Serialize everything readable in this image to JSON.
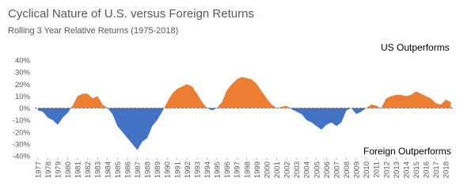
{
  "chart_data": {
    "type": "area",
    "title": "Cyclical Nature of U.S. versus Foreign Returns",
    "subtitle": "Rolling 3 Year Relative Returns (1975-2018)",
    "annotations": [
      "US Outperforms",
      "Foreign Outperforms"
    ],
    "x": [
      1977,
      1977.5,
      1978,
      1978.5,
      1979,
      1979.5,
      1980,
      1980.5,
      1981,
      1981.5,
      1982,
      1982.5,
      1983,
      1983.5,
      1984,
      1984.5,
      1985,
      1985.5,
      1986,
      1986.5,
      1987,
      1987.5,
      1988,
      1988.5,
      1989,
      1989.5,
      1990,
      1990.5,
      1991,
      1991.5,
      1992,
      1992.5,
      1993,
      1993.5,
      1994,
      1994.5,
      1995,
      1995.5,
      1996,
      1996.5,
      1997,
      1997.5,
      1998,
      1998.5,
      1999,
      1999.5,
      2000,
      2000.5,
      2001,
      2001.5,
      2002,
      2002.5,
      2003,
      2003.5,
      2004,
      2004.5,
      2005,
      2005.5,
      2006,
      2006.5,
      2007,
      2007.5,
      2008,
      2008.5,
      2009,
      2009.5,
      2010,
      2010.5,
      2011,
      2011.5,
      2012,
      2012.5,
      2013,
      2013.5,
      2014,
      2014.5,
      2015,
      2015.5,
      2016,
      2016.5,
      2017,
      2017.5,
      2018,
      2018.5
    ],
    "values": [
      -2,
      -3,
      -8,
      -10,
      -14,
      -8,
      -4,
      2,
      10,
      12,
      12,
      8,
      10,
      3,
      0,
      -5,
      -15,
      -20,
      -25,
      -30,
      -35,
      -28,
      -25,
      -15,
      -10,
      -3,
      5,
      12,
      16,
      18,
      20,
      18,
      12,
      5,
      0,
      -2,
      0,
      5,
      15,
      20,
      24,
      26,
      25,
      24,
      20,
      14,
      8,
      3,
      0,
      1,
      2,
      -1,
      -3,
      -5,
      -10,
      -12,
      -15,
      -18,
      -14,
      -12,
      -15,
      -12,
      -2,
      0,
      -5,
      -3,
      0,
      3,
      2,
      0,
      8,
      10,
      11,
      11,
      10,
      11,
      14,
      12,
      10,
      8,
      4,
      3,
      7,
      5
    ],
    "positive_color": "#ed7d31",
    "negative_color": "#4472c4",
    "xlim": [
      1976.7,
      2018.7
    ],
    "xticks": [
      1977,
      1978,
      1979,
      1980,
      1981,
      1982,
      1983,
      1984,
      1985,
      1986,
      1987,
      1988,
      1989,
      1990,
      1991,
      1992,
      1993,
      1994,
      1995,
      1996,
      1997,
      1998,
      1999,
      2000,
      2001,
      2002,
      2003,
      2004,
      2005,
      2006,
      2007,
      2008,
      2009,
      2010,
      2011,
      2012,
      2013,
      2014,
      2015,
      2016,
      2017,
      2018
    ],
    "ylim": [
      -40,
      40
    ],
    "yticks": [
      {
        "value": -40,
        "label": "-40%"
      },
      {
        "value": -30,
        "label": "-30%"
      },
      {
        "value": -20,
        "label": "-20%"
      },
      {
        "value": -10,
        "label": "-10%"
      },
      {
        "value": 0,
        "label": "0%"
      },
      {
        "value": 10,
        "label": "10%"
      },
      {
        "value": 20,
        "label": "20%"
      },
      {
        "value": 30,
        "label": "30%"
      },
      {
        "value": 40,
        "label": "40%"
      }
    ]
  }
}
